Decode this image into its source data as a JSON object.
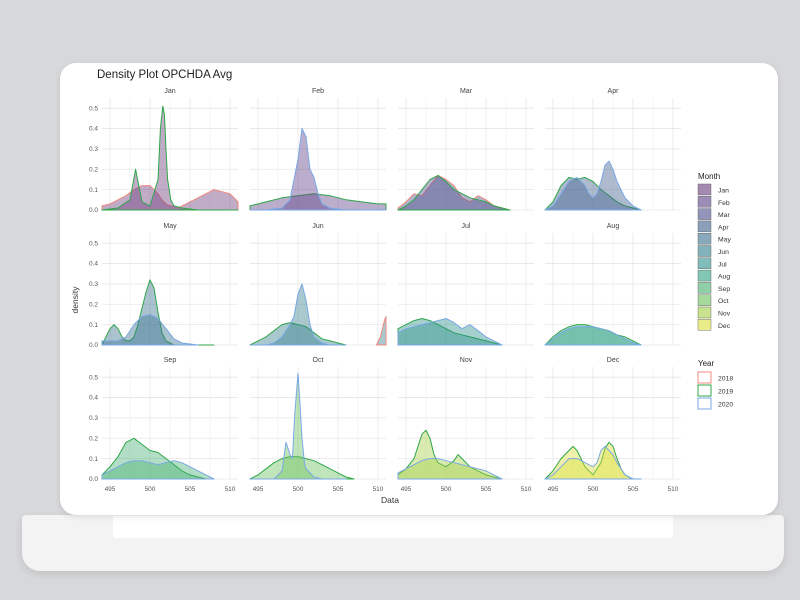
{
  "chart_data": {
    "type": "area",
    "title": "Density Plot OPCHDA Avg",
    "xlabel": "Data",
    "ylabel": "density",
    "xlim": [
      494,
      511
    ],
    "ylim": [
      0,
      0.55
    ],
    "x_ticks": [
      "495",
      "500",
      "505",
      "510"
    ],
    "y_ticks": [
      "0.0",
      "0.1",
      "0.2",
      "0.3",
      "0.4",
      "0.5"
    ],
    "grid": true,
    "legend_month": {
      "title": "Month",
      "entries": [
        "Jan",
        "Feb",
        "Mar",
        "Apr",
        "May",
        "Jun",
        "Jul",
        "Aug",
        "Sep",
        "Oct",
        "Nov",
        "Dec"
      ],
      "colors": [
        "#6b3a7d",
        "#5a3f86",
        "#4b4c8a",
        "#3e5e8c",
        "#386f8d",
        "#327f8d",
        "#2b908b",
        "#2fa182",
        "#45b073",
        "#6bc25b",
        "#a5cf45",
        "#dbe03a"
      ]
    },
    "legend_year": {
      "title": "Year",
      "entries": [
        "2018",
        "2019",
        "2020"
      ],
      "colors": [
        "#f08a7f",
        "#2fa64a",
        "#7aa8e6"
      ]
    },
    "facets": [
      {
        "label": "Jan",
        "fill": "#6b3a7d",
        "series": [
          {
            "year": "2018",
            "x": [
              494,
              495,
              497,
              498,
              499,
              500,
              500.5,
              501,
              501.5,
              502,
              502.5,
              503,
              503.5,
              504,
              506,
              508,
              510,
              511
            ],
            "y": [
              0.02,
              0.03,
              0.07,
              0.1,
              0.12,
              0.12,
              0.1,
              0.08,
              0.05,
              0.03,
              0.02,
              0.02,
              0.01,
              0.02,
              0.06,
              0.1,
              0.08,
              0.04
            ]
          },
          {
            "year": "2019",
            "x": [
              494,
              496,
              497.5,
              498.2,
              499,
              500,
              501,
              501.3,
              501.6,
              501.8,
              502,
              502.2,
              502.6,
              503,
              504,
              506,
              508,
              511
            ],
            "y": [
              0,
              0.01,
              0.05,
              0.2,
              0.04,
              0.02,
              0.15,
              0.4,
              0.51,
              0.47,
              0.3,
              0.15,
              0.05,
              0.02,
              0.01,
              0,
              0,
              0
            ]
          }
        ]
      },
      {
        "label": "Feb",
        "fill": "#5a3f86",
        "series": [
          {
            "year": "2019",
            "x": [
              494,
              496,
              498,
              500,
              502,
              504,
              506,
              508,
              510,
              511
            ],
            "y": [
              0.02,
              0.04,
              0.06,
              0.07,
              0.08,
              0.07,
              0.05,
              0.04,
              0.03,
              0.03
            ]
          },
          {
            "year": "2020",
            "x": [
              494,
              496,
              498,
              499,
              500,
              500.5,
              501,
              501.5,
              502,
              502.5,
              503,
              504,
              506,
              511
            ],
            "y": [
              0,
              0,
              0.01,
              0.05,
              0.25,
              0.4,
              0.36,
              0.2,
              0.16,
              0.08,
              0.03,
              0.01,
              0,
              0
            ]
          }
        ]
      },
      {
        "label": "Mar",
        "fill": "#4b4c8a",
        "series": [
          {
            "year": "2018",
            "x": [
              494,
              495,
              496,
              497,
              498,
              499,
              500,
              501,
              502,
              503,
              504,
              505,
              506,
              507,
              508
            ],
            "y": [
              0.01,
              0.04,
              0.08,
              0.07,
              0.12,
              0.17,
              0.15,
              0.12,
              0.06,
              0.04,
              0.07,
              0.05,
              0.02,
              0.01,
              0
            ]
          },
          {
            "year": "2019",
            "x": [
              494,
              495,
              496,
              497,
              498,
              499,
              500,
              501,
              502,
              503,
              504,
              505,
              506,
              507,
              508
            ],
            "y": [
              0,
              0.02,
              0.05,
              0.1,
              0.15,
              0.17,
              0.14,
              0.1,
              0.08,
              0.06,
              0.05,
              0.04,
              0.02,
              0.01,
              0
            ]
          }
        ]
      },
      {
        "label": "Apr",
        "fill": "#3e5e8c",
        "series": [
          {
            "year": "2019",
            "x": [
              494,
              495,
              496,
              497,
              498,
              499,
              500,
              501,
              502,
              503,
              504,
              505,
              506
            ],
            "y": [
              0,
              0.04,
              0.12,
              0.16,
              0.15,
              0.16,
              0.14,
              0.1,
              0.07,
              0.04,
              0.02,
              0.01,
              0
            ]
          },
          {
            "year": "2020",
            "x": [
              494,
              495,
              496,
              497,
              498,
              499,
              499.5,
              500,
              500.5,
              501,
              501.5,
              502,
              502.5,
              503,
              504,
              505,
              506
            ],
            "y": [
              0,
              0.02,
              0.08,
              0.14,
              0.16,
              0.12,
              0.08,
              0.06,
              0.08,
              0.14,
              0.22,
              0.24,
              0.2,
              0.14,
              0.06,
              0.02,
              0
            ]
          }
        ]
      },
      {
        "label": "May",
        "fill": "#386f8d",
        "series": [
          {
            "year": "2019",
            "x": [
              494,
              494.5,
              495,
              495.5,
              496,
              496.5,
              497,
              497.5,
              498,
              498.5,
              499,
              499.5,
              500,
              500.5,
              501,
              501.5,
              502,
              503,
              504,
              506,
              508
            ],
            "y": [
              0,
              0.04,
              0.08,
              0.1,
              0.08,
              0.04,
              0.02,
              0.02,
              0.04,
              0.1,
              0.18,
              0.26,
              0.32,
              0.28,
              0.16,
              0.06,
              0.02,
              0,
              0,
              0,
              0
            ]
          },
          {
            "year": "2020",
            "x": [
              494,
              496,
              497,
              498,
              499,
              500,
              501,
              502,
              503,
              504,
              506
            ],
            "y": [
              0.02,
              0.02,
              0.04,
              0.1,
              0.14,
              0.15,
              0.13,
              0.08,
              0.03,
              0.01,
              0
            ]
          }
        ]
      },
      {
        "label": "Jun",
        "fill": "#327f8d",
        "series": [
          {
            "year": "2019",
            "x": [
              494,
              495,
              496,
              497,
              498,
              499,
              500,
              501,
              502,
              503,
              504,
              505,
              506
            ],
            "y": [
              0,
              0.02,
              0.04,
              0.07,
              0.1,
              0.11,
              0.1,
              0.09,
              0.06,
              0.03,
              0.02,
              0.01,
              0
            ]
          },
          {
            "year": "2020",
            "x": [
              494,
              496,
              497,
              498,
              499,
              499.5,
              500,
              500.5,
              501,
              501.5,
              502,
              503,
              504,
              506
            ],
            "y": [
              0,
              0,
              0.01,
              0.04,
              0.1,
              0.14,
              0.25,
              0.3,
              0.22,
              0.1,
              0.04,
              0.01,
              0,
              0
            ]
          },
          {
            "year": "2018",
            "x": [
              509.8,
              510.3,
              510.8,
              511
            ],
            "y": [
              0,
              0.04,
              0.12,
              0.14
            ]
          }
        ]
      },
      {
        "label": "Jul",
        "fill": "#2b908b",
        "series": [
          {
            "year": "2019",
            "x": [
              494,
              495,
              496,
              497,
              498,
              499,
              500,
              501,
              502,
              503,
              504,
              505,
              506,
              507
            ],
            "y": [
              0.08,
              0.1,
              0.12,
              0.13,
              0.12,
              0.1,
              0.08,
              0.06,
              0.05,
              0.04,
              0.03,
              0.02,
              0.01,
              0
            ]
          },
          {
            "year": "2020",
            "x": [
              494,
              495,
              496,
              497,
              498,
              499,
              500,
              501,
              502,
              503,
              504,
              505,
              506,
              507
            ],
            "y": [
              0.06,
              0.08,
              0.09,
              0.1,
              0.11,
              0.12,
              0.13,
              0.11,
              0.08,
              0.1,
              0.07,
              0.04,
              0.02,
              0
            ]
          }
        ]
      },
      {
        "label": "Aug",
        "fill": "#2fa182",
        "series": [
          {
            "year": "2019",
            "x": [
              494,
              495,
              496,
              497,
              498,
              499,
              500,
              501,
              502,
              503,
              504,
              505,
              506
            ],
            "y": [
              0,
              0.04,
              0.07,
              0.09,
              0.1,
              0.1,
              0.09,
              0.08,
              0.07,
              0.05,
              0.04,
              0.02,
              0
            ]
          },
          {
            "year": "2020",
            "x": [
              494,
              495,
              496,
              497,
              498,
              499,
              500,
              501,
              502,
              503,
              504,
              505,
              506
            ],
            "y": [
              0,
              0.03,
              0.06,
              0.08,
              0.09,
              0.09,
              0.09,
              0.08,
              0.07,
              0.05,
              0.03,
              0.01,
              0
            ]
          }
        ]
      },
      {
        "label": "Sep",
        "fill": "#45b073",
        "series": [
          {
            "year": "2019",
            "x": [
              494,
              495,
              496,
              497,
              498,
              499,
              500,
              501,
              502,
              503,
              504,
              505,
              506,
              507,
              508
            ],
            "y": [
              0.02,
              0.06,
              0.11,
              0.18,
              0.2,
              0.17,
              0.14,
              0.13,
              0.1,
              0.07,
              0.04,
              0.02,
              0.01,
              0,
              0
            ]
          },
          {
            "year": "2020",
            "x": [
              494,
              495,
              496,
              497,
              498,
              499,
              500,
              501,
              502,
              503,
              504,
              505,
              506,
              507,
              508
            ],
            "y": [
              0.02,
              0.04,
              0.06,
              0.08,
              0.09,
              0.09,
              0.08,
              0.07,
              0.08,
              0.09,
              0.08,
              0.06,
              0.04,
              0.02,
              0
            ]
          }
        ]
      },
      {
        "label": "Oct",
        "fill": "#6bc25b",
        "series": [
          {
            "year": "2019",
            "x": [
              494,
              495,
              496,
              497,
              498,
              499,
              500,
              501,
              502,
              503,
              504,
              505,
              506,
              507
            ],
            "y": [
              0,
              0.02,
              0.05,
              0.08,
              0.1,
              0.11,
              0.11,
              0.1,
              0.09,
              0.07,
              0.05,
              0.03,
              0.01,
              0
            ]
          },
          {
            "year": "2020",
            "x": [
              494,
              497,
              498,
              498.5,
              499,
              499.3,
              499.6,
              500,
              500.2,
              500.5,
              500.8,
              501,
              501.5,
              502,
              503,
              504,
              506
            ],
            "y": [
              0,
              0,
              0.04,
              0.18,
              0.12,
              0.1,
              0.32,
              0.52,
              0.4,
              0.2,
              0.08,
              0.05,
              0.03,
              0.01,
              0,
              0,
              0
            ]
          }
        ]
      },
      {
        "label": "Nov",
        "fill": "#a5cf45",
        "series": [
          {
            "year": "2019",
            "x": [
              494,
              495,
              496,
              496.5,
              497,
              497.5,
              498,
              498.5,
              499,
              500,
              501,
              501.5,
              502,
              503,
              504,
              505,
              506,
              507
            ],
            "y": [
              0.02,
              0.05,
              0.1,
              0.16,
              0.22,
              0.24,
              0.2,
              0.12,
              0.08,
              0.06,
              0.09,
              0.12,
              0.1,
              0.06,
              0.04,
              0.02,
              0.01,
              0
            ]
          },
          {
            "year": "2020",
            "x": [
              494,
              495,
              496,
              497,
              498,
              499,
              500,
              501,
              502,
              503,
              504,
              505,
              506,
              507
            ],
            "y": [
              0.03,
              0.05,
              0.07,
              0.09,
              0.1,
              0.1,
              0.09,
              0.08,
              0.07,
              0.06,
              0.05,
              0.04,
              0.02,
              0
            ]
          }
        ]
      },
      {
        "label": "Dec",
        "fill": "#dbe03a",
        "series": [
          {
            "year": "2019",
            "x": [
              494,
              495,
              496,
              497,
              497.5,
              498,
              498.5,
              499,
              500,
              501,
              501.5,
              502,
              502.5,
              503,
              503.5,
              504,
              505,
              506
            ],
            "y": [
              0,
              0.04,
              0.1,
              0.14,
              0.16,
              0.14,
              0.1,
              0.06,
              0.02,
              0.08,
              0.15,
              0.18,
              0.16,
              0.1,
              0.05,
              0.02,
              0,
              0
            ]
          },
          {
            "year": "2020",
            "x": [
              494,
              495,
              496,
              497,
              498,
              499,
              500,
              500.5,
              501,
              501.5,
              502,
              502.5,
              503,
              503.5,
              504,
              505,
              506
            ],
            "y": [
              0,
              0.02,
              0.06,
              0.1,
              0.1,
              0.08,
              0.06,
              0.08,
              0.14,
              0.16,
              0.14,
              0.12,
              0.08,
              0.05,
              0.02,
              0,
              0
            ]
          }
        ]
      }
    ]
  }
}
